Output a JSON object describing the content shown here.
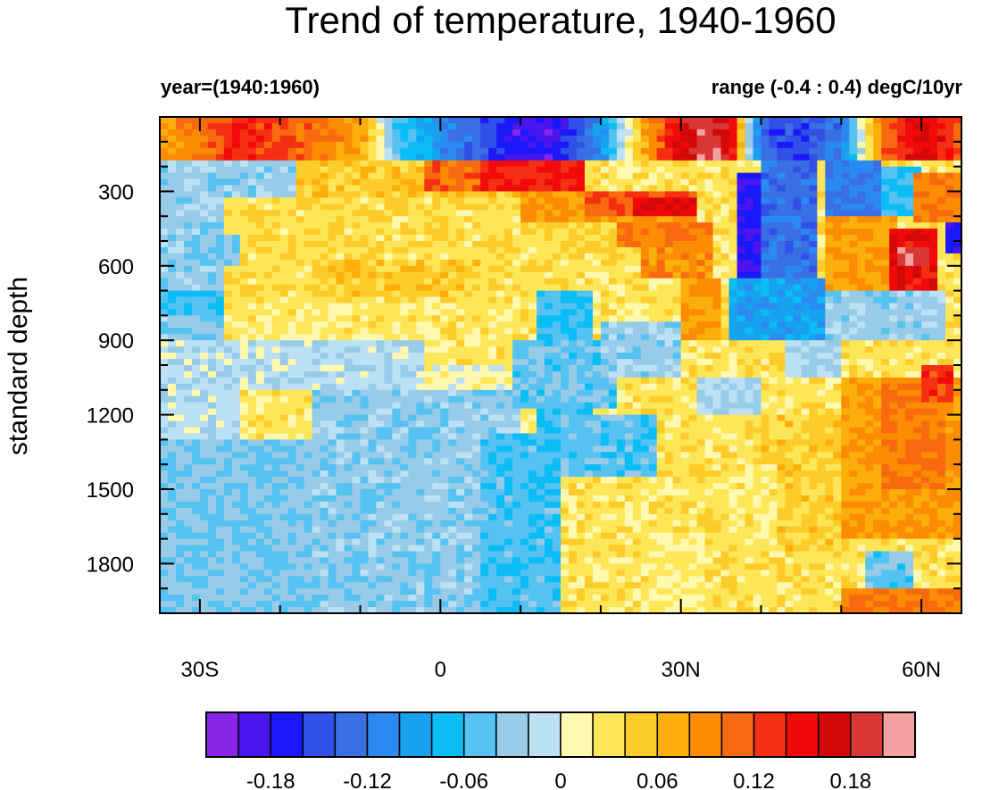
{
  "chart_data": {
    "type": "heatmap",
    "title": "Trend of temperature, 1940-1960",
    "left_string": "year=(1940:1960)",
    "right_string": "range (-0.4 : 0.4) degC/10yr",
    "ylabel": "standard depth",
    "xlabel": "",
    "x_range": [
      -35,
      65
    ],
    "y_range": [
      0,
      2000
    ],
    "y_reversed": true,
    "x_major_ticks": [
      -30,
      0,
      30,
      60
    ],
    "x_tick_labels": [
      "30S",
      "0",
      "30N",
      "60N"
    ],
    "y_major_ticks": [
      300,
      600,
      900,
      1200,
      1500,
      1800
    ],
    "y_tick_labels": [
      "300",
      "600",
      "900",
      "1200",
      "1500",
      "1800"
    ],
    "colorbar": {
      "colors": [
        "#8a25e8",
        "#4a16f0",
        "#1a18f8",
        "#3050e8",
        "#3a6fe4",
        "#2b8af2",
        "#17a2f0",
        "#0cbcf4",
        "#55c2f2",
        "#98cbe8",
        "#bde1f4",
        "#fff9b0",
        "#fde657",
        "#fdcc2a",
        "#fcae0b",
        "#fb8c04",
        "#f86a10",
        "#f53012",
        "#f00a0a",
        "#d30808",
        "#d93636",
        "#f4a1a1"
      ],
      "boundaries": [
        -0.2,
        -0.18,
        -0.16,
        -0.14,
        -0.12,
        -0.1,
        -0.08,
        -0.06,
        -0.04,
        -0.02,
        0,
        0.02,
        0.04,
        0.06,
        0.08,
        0.1,
        0.12,
        0.14,
        0.16,
        0.18,
        0.2
      ],
      "labels": [
        "-0.18",
        "-0.12",
        "-0.06",
        "0",
        "0.06",
        "0.12",
        "0.18"
      ],
      "label_values": [
        -0.18,
        -0.12,
        -0.06,
        0,
        0.06,
        0.12,
        0.18
      ]
    },
    "regions": [
      {
        "x": [
          -35,
          -16
        ],
        "y": [
          1300,
          2000
        ],
        "v": -0.038
      },
      {
        "x": [
          -16,
          10
        ],
        "y": [
          1100,
          2000
        ],
        "v": -0.032
      },
      {
        "x": [
          -35,
          -25
        ],
        "y": [
          900,
          1300
        ],
        "v": -0.012
      },
      {
        "x": [
          -25,
          -2
        ],
        "y": [
          900,
          1100
        ],
        "v": -0.012
      },
      {
        "x": [
          -2,
          14
        ],
        "y": [
          1000,
          1100
        ],
        "v": 0.01
      },
      {
        "x": [
          -25,
          5
        ],
        "y": [
          750,
          900
        ],
        "v": 0.025
      },
      {
        "x": [
          -30,
          12
        ],
        "y": [
          330,
          750
        ],
        "v": 0.035
      },
      {
        "x": [
          -16,
          5
        ],
        "y": [
          580,
          720
        ],
        "v": 0.05
      },
      {
        "x": [
          -20,
          10
        ],
        "y": [
          170,
          330
        ],
        "v": 0.05
      },
      {
        "x": [
          -35,
          -18
        ],
        "y": [
          180,
          330
        ],
        "v": -0.028
      },
      {
        "x": [
          -35,
          -27
        ],
        "y": [
          330,
          900
        ],
        "v": -0.03
      },
      {
        "x": [
          -35,
          -27
        ],
        "y": [
          700,
          790
        ],
        "v": -0.06
      },
      {
        "x": [
          -32,
          -25
        ],
        "y": [
          470,
          600
        ],
        "v": -0.04
      },
      {
        "x": [
          -2,
          13
        ],
        "y": [
          180,
          300
        ],
        "v": 0.11
      },
      {
        "x": [
          5,
          18
        ],
        "y": [
          180,
          290
        ],
        "v": 0.14
      },
      {
        "x": [
          10,
          32
        ],
        "y": [
          290,
          420
        ],
        "v": 0.08
      },
      {
        "x": [
          18,
          32
        ],
        "y": [
          300,
          400
        ],
        "v": 0.12
      },
      {
        "x": [
          24,
          32
        ],
        "y": [
          330,
          400
        ],
        "v": 0.16
      },
      {
        "x": [
          12,
          22
        ],
        "y": [
          420,
          560
        ],
        "v": 0.04
      },
      {
        "x": [
          25,
          34
        ],
        "y": [
          420,
          660
        ],
        "v": 0.09
      },
      {
        "x": [
          22,
          34
        ],
        "y": [
          420,
          520
        ],
        "v": 0.1
      },
      {
        "x": [
          12,
          19
        ],
        "y": [
          700,
          1280
        ],
        "v": -0.06
      },
      {
        "x": [
          9,
          22
        ],
        "y": [
          900,
          1180
        ],
        "v": -0.045
      },
      {
        "x": [
          5,
          15
        ],
        "y": [
          1280,
          2000
        ],
        "v": -0.055
      },
      {
        "x": [
          15,
          27
        ],
        "y": [
          1200,
          1450
        ],
        "v": -0.05
      },
      {
        "x": [
          20,
          30
        ],
        "y": [
          820,
          1050
        ],
        "v": -0.03
      },
      {
        "x": [
          30,
          35
        ],
        "y": [
          650,
          900
        ],
        "v": 0.08
      },
      {
        "x": [
          32,
          40
        ],
        "y": [
          1050,
          1200
        ],
        "v": -0.02
      },
      {
        "x": [
          26,
          33
        ],
        "y": [
          1700,
          2000
        ],
        "v": 0.02
      },
      {
        "x": [
          37,
          45
        ],
        "y": [
          220,
          800
        ],
        "v": -0.18
      },
      {
        "x": [
          40,
          47
        ],
        "y": [
          130,
          650
        ],
        "v": -0.13
      },
      {
        "x": [
          36,
          48
        ],
        "y": [
          650,
          900
        ],
        "v": -0.09
      },
      {
        "x": [
          48,
          55
        ],
        "y": [
          100,
          400
        ],
        "v": -0.12
      },
      {
        "x": [
          55,
          60
        ],
        "y": [
          200,
          400
        ],
        "v": -0.06
      },
      {
        "x": [
          48,
          57
        ],
        "y": [
          400,
          700
        ],
        "v": 0.08
      },
      {
        "x": [
          56,
          62
        ],
        "y": [
          450,
          700
        ],
        "v": 0.15
      },
      {
        "x": [
          57,
          61
        ],
        "y": [
          520,
          600
        ],
        "v": 0.2
      },
      {
        "x": [
          59,
          65
        ],
        "y": [
          220,
          420
        ],
        "v": 0.1
      },
      {
        "x": [
          63,
          65
        ],
        "y": [
          420,
          560
        ],
        "v": -0.18
      },
      {
        "x": [
          48,
          63
        ],
        "y": [
          700,
          900
        ],
        "v": -0.03
      },
      {
        "x": [
          43,
          50
        ],
        "y": [
          900,
          1050
        ],
        "v": -0.02
      },
      {
        "x": [
          50,
          65
        ],
        "y": [
          1050,
          1700
        ],
        "v": 0.08
      },
      {
        "x": [
          55,
          63
        ],
        "y": [
          1050,
          1500
        ],
        "v": 0.1
      },
      {
        "x": [
          60,
          64
        ],
        "y": [
          1000,
          1150
        ],
        "v": 0.13
      },
      {
        "x": [
          40,
          50
        ],
        "y": [
          1200,
          1750
        ],
        "v": 0.045
      },
      {
        "x": [
          35,
          42
        ],
        "y": [
          1400,
          1750
        ],
        "v": 0.025
      },
      {
        "x": [
          53,
          59
        ],
        "y": [
          1750,
          1950
        ],
        "v": -0.045
      },
      {
        "x": [
          50,
          65
        ],
        "y": [
          1900,
          2000
        ],
        "v": 0.1
      }
    ],
    "surface_row": {
      "y": [
        0,
        170
      ],
      "x": [
        -35,
        -30,
        -25,
        -20,
        -15,
        -10,
        -5,
        0,
        5,
        10,
        15,
        20,
        25,
        30,
        33,
        36,
        40,
        45,
        50,
        55,
        60,
        65
      ],
      "v": [
        0.08,
        0.1,
        0.14,
        0.12,
        0.1,
        0.08,
        -0.06,
        -0.1,
        -0.14,
        -0.19,
        -0.18,
        -0.1,
        0.06,
        0.16,
        0.2,
        0.18,
        -0.14,
        -0.16,
        -0.12,
        0.1,
        0.17,
        0.12
      ]
    }
  }
}
